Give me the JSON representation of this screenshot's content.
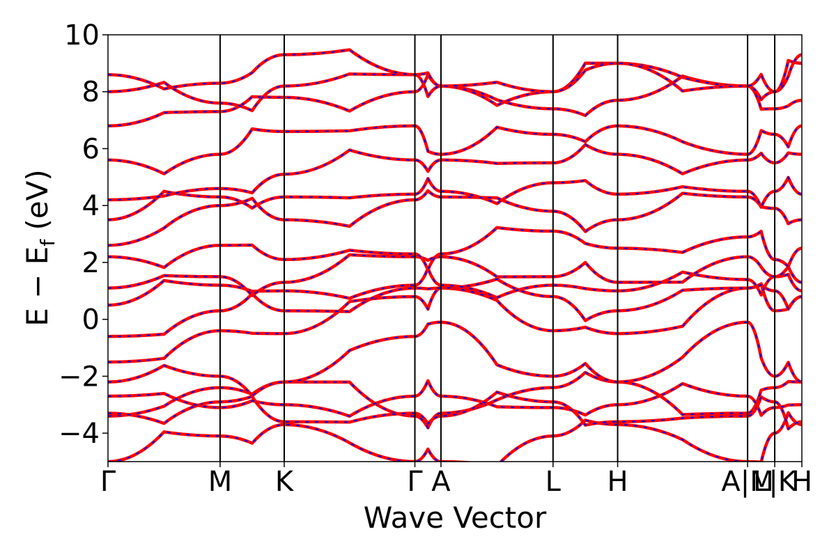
{
  "chart_data": {
    "type": "line",
    "title": "",
    "xlabel": "Wave Vector",
    "ylabel": "E − E_f (eV)",
    "ylabel_parts": {
      "main": "E − E",
      "sub": "f",
      "unit": " (eV)"
    },
    "ylim": [
      -5,
      10
    ],
    "yticks": [
      -4,
      -2,
      0,
      2,
      4,
      6,
      8,
      10
    ],
    "ytick_labels": [
      "−4",
      "−2",
      "0",
      "2",
      "4",
      "6",
      "8",
      "10"
    ],
    "xlim": [
      0,
      1
    ],
    "kpath": [
      {
        "label": "Γ",
        "x": 0.0
      },
      {
        "label": "M",
        "x": 0.1616
      },
      {
        "label": "K",
        "x": 0.254
      },
      {
        "label": "Γ",
        "x": 0.4423
      },
      {
        "label": "A",
        "x": 0.4799
      },
      {
        "label": "L",
        "x": 0.6414
      },
      {
        "label": "H",
        "x": 0.7345
      },
      {
        "label": "A|M",
        "x": 0.9218
      },
      {
        "label": "L|K",
        "x": 0.9609
      },
      {
        "label": "H",
        "x": 1.0
      }
    ],
    "grid": false,
    "legend": "none",
    "series_style": {
      "primary_color": "#ff0000",
      "overlay_color": "#0000ff",
      "overlay_dash": "dashed"
    },
    "bands_sampled_at_kpoints": [
      [
        -5.0,
        -4.1,
        -3.7,
        -5.0,
        -5.0,
        -4.1,
        -3.7,
        -5.0,
        -4.0,
        -3.7
      ],
      [
        -3.4,
        -2.4,
        -2.2,
        -3.4,
        -3.3,
        -2.4,
        -2.2,
        -3.3,
        -2.4,
        -2.2
      ],
      [
        -3.3,
        -2.9,
        -3.6,
        -3.3,
        -3.4,
        -2.9,
        -3.6,
        -3.4,
        -2.9,
        -3.6
      ],
      [
        -2.7,
        -3.1,
        -3.0,
        -2.7,
        -2.7,
        -3.1,
        -3.0,
        -2.7,
        -3.1,
        -3.0
      ],
      [
        -2.2,
        -2.0,
        -2.2,
        -0.6,
        -0.1,
        -2.0,
        -2.2,
        -0.1,
        -2.0,
        -2.2
      ],
      [
        -1.5,
        -0.4,
        -0.5,
        0.8,
        1.1,
        -0.4,
        -0.5,
        1.1,
        0.3,
        0.8
      ],
      [
        -0.6,
        0.3,
        0.3,
        1.1,
        1.1,
        0.8,
        0.3,
        1.1,
        1.0,
        0.8
      ],
      [
        0.5,
        1.2,
        1.0,
        1.2,
        1.2,
        1.2,
        1.0,
        1.4,
        1.5,
        1.0
      ],
      [
        1.1,
        1.5,
        1.3,
        2.2,
        2.2,
        1.5,
        1.3,
        2.2,
        1.5,
        1.3
      ],
      [
        2.2,
        2.6,
        2.1,
        2.3,
        2.3,
        3.1,
        2.5,
        2.9,
        2.1,
        2.5
      ],
      [
        2.6,
        4.0,
        3.5,
        4.2,
        4.3,
        3.8,
        3.5,
        4.3,
        3.9,
        3.5
      ],
      [
        3.5,
        4.3,
        4.3,
        4.4,
        4.5,
        4.8,
        4.4,
        4.5,
        4.5,
        4.4
      ],
      [
        4.2,
        4.6,
        5.1,
        5.6,
        5.6,
        5.5,
        5.8,
        5.6,
        5.5,
        5.8
      ],
      [
        5.6,
        5.8,
        6.6,
        6.8,
        5.8,
        6.5,
        6.8,
        5.8,
        6.5,
        6.8
      ],
      [
        6.8,
        7.3,
        7.8,
        8.0,
        8.2,
        7.4,
        7.7,
        8.2,
        7.4,
        7.7
      ],
      [
        8.0,
        7.6,
        8.2,
        8.6,
        8.2,
        8.0,
        9.0,
        8.2,
        8.0,
        9.0
      ],
      [
        8.6,
        8.3,
        9.3,
        8.6,
        8.2,
        8.0,
        9.0,
        8.2,
        8.0,
        9.3
      ]
    ]
  }
}
